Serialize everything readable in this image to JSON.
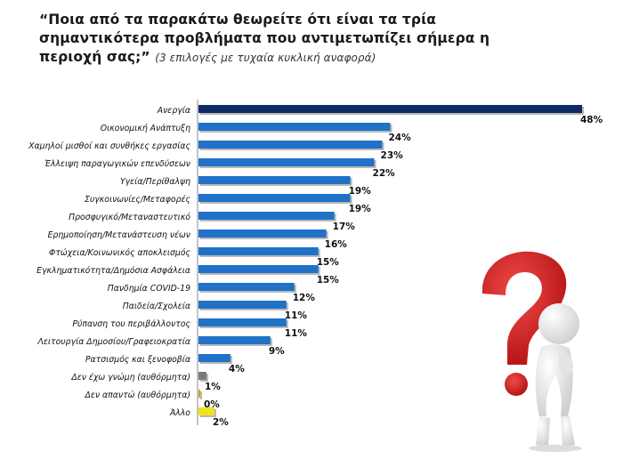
{
  "title": {
    "main": "“Ποια από τα παρακάτω θεωρείτε ότι είναι τα τρία σημαντικότερα προβλήματα που αντιμετωπίζει σήμερα η περιοχή σας;”",
    "note": "(3 επιλογές με τυχαία κυκλική αναφορά)"
  },
  "colors": {
    "top_bar": "#0d2a66",
    "bar": "#1f72c8",
    "dont_know": "#7a7a7a",
    "no_answer": "#d9a21c",
    "other": "#f2e21a",
    "question_mark": "#d21a1a"
  },
  "chart_data": {
    "type": "bar",
    "orientation": "horizontal",
    "categories": [
      "Ανεργία",
      "Οικονομική Ανάπτυξη",
      "Χαμηλοί μισθοί και συνθήκες εργασίας",
      "Έλλειψη παραγωγικών επενδύσεων",
      "Υγεία/Περίθαλψη",
      "Συγκοινωνίες/Μεταφορές",
      "Προσφυγικό/Μεταναστευτικό",
      "Ερημοποίηση/Μετανάστευση νέων",
      "Φτώχεια/Κοινωνικός αποκλεισμός",
      "Εγκληματικότητα/Δημόσια Ασφάλεια",
      "Πανδημία COVID-19",
      "Παιδεία/Σχολεία",
      "Ρύπανση του περιβάλλοντος",
      "Λειτουργία Δημοσίου/Γραφειοκρατία",
      "Ρατσισμός και ξενοφοβία",
      "Δεν έχω γνώμη (αυθόρμητα)",
      "Δεν απαντώ (αυθόρμητα)",
      "Άλλο"
    ],
    "values": [
      48,
      24,
      23,
      22,
      19,
      19,
      17,
      16,
      15,
      15,
      12,
      11,
      11,
      9,
      4,
      1,
      0,
      2
    ],
    "value_labels": [
      "48%",
      "24%",
      "23%",
      "22%",
      "19%",
      "19%",
      "17%",
      "16%",
      "15%",
      "15%",
      "12%",
      "11%",
      "11%",
      "9%",
      "4%",
      "1%",
      "0%",
      "2%"
    ],
    "bar_colors": [
      "#0d2a66",
      "#1f72c8",
      "#1f72c8",
      "#1f72c8",
      "#1f72c8",
      "#1f72c8",
      "#1f72c8",
      "#1f72c8",
      "#1f72c8",
      "#1f72c8",
      "#1f72c8",
      "#1f72c8",
      "#1f72c8",
      "#1f72c8",
      "#1f72c8",
      "#7a7a7a",
      "#d9a21c",
      "#f2e21a"
    ],
    "xlim": [
      0,
      48
    ],
    "grid": false,
    "legend": "none"
  },
  "illustration": {
    "icon": "question-mark-figure-icon"
  }
}
